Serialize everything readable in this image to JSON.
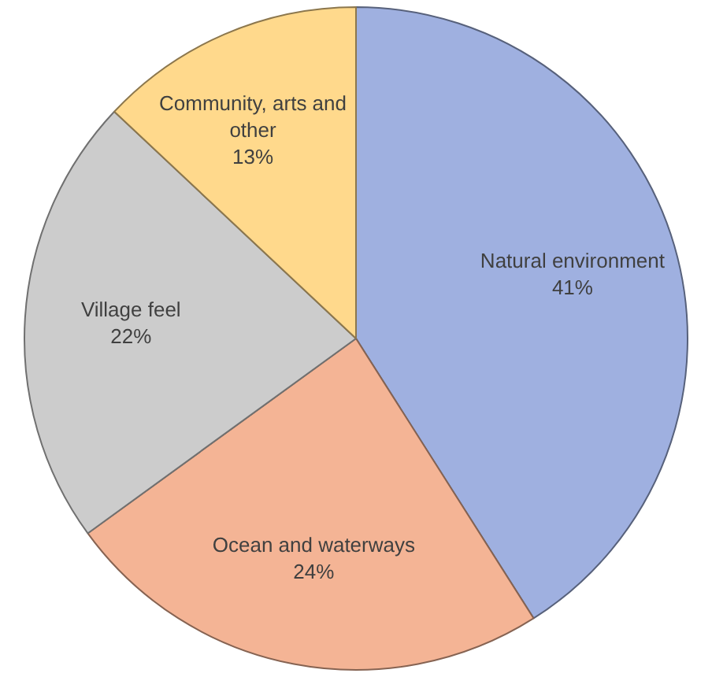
{
  "chart_data": {
    "type": "pie",
    "categories": [
      "Natural environment",
      "Ocean and waterways",
      "Village feel",
      "Community, arts and other"
    ],
    "values": [
      41,
      24,
      22,
      13
    ],
    "colors": [
      "#9fb0e0",
      "#f4b495",
      "#cccccc",
      "#ffd98c"
    ],
    "value_labels": [
      "41%",
      "24%",
      "22%",
      "13%"
    ],
    "legend": false
  }
}
